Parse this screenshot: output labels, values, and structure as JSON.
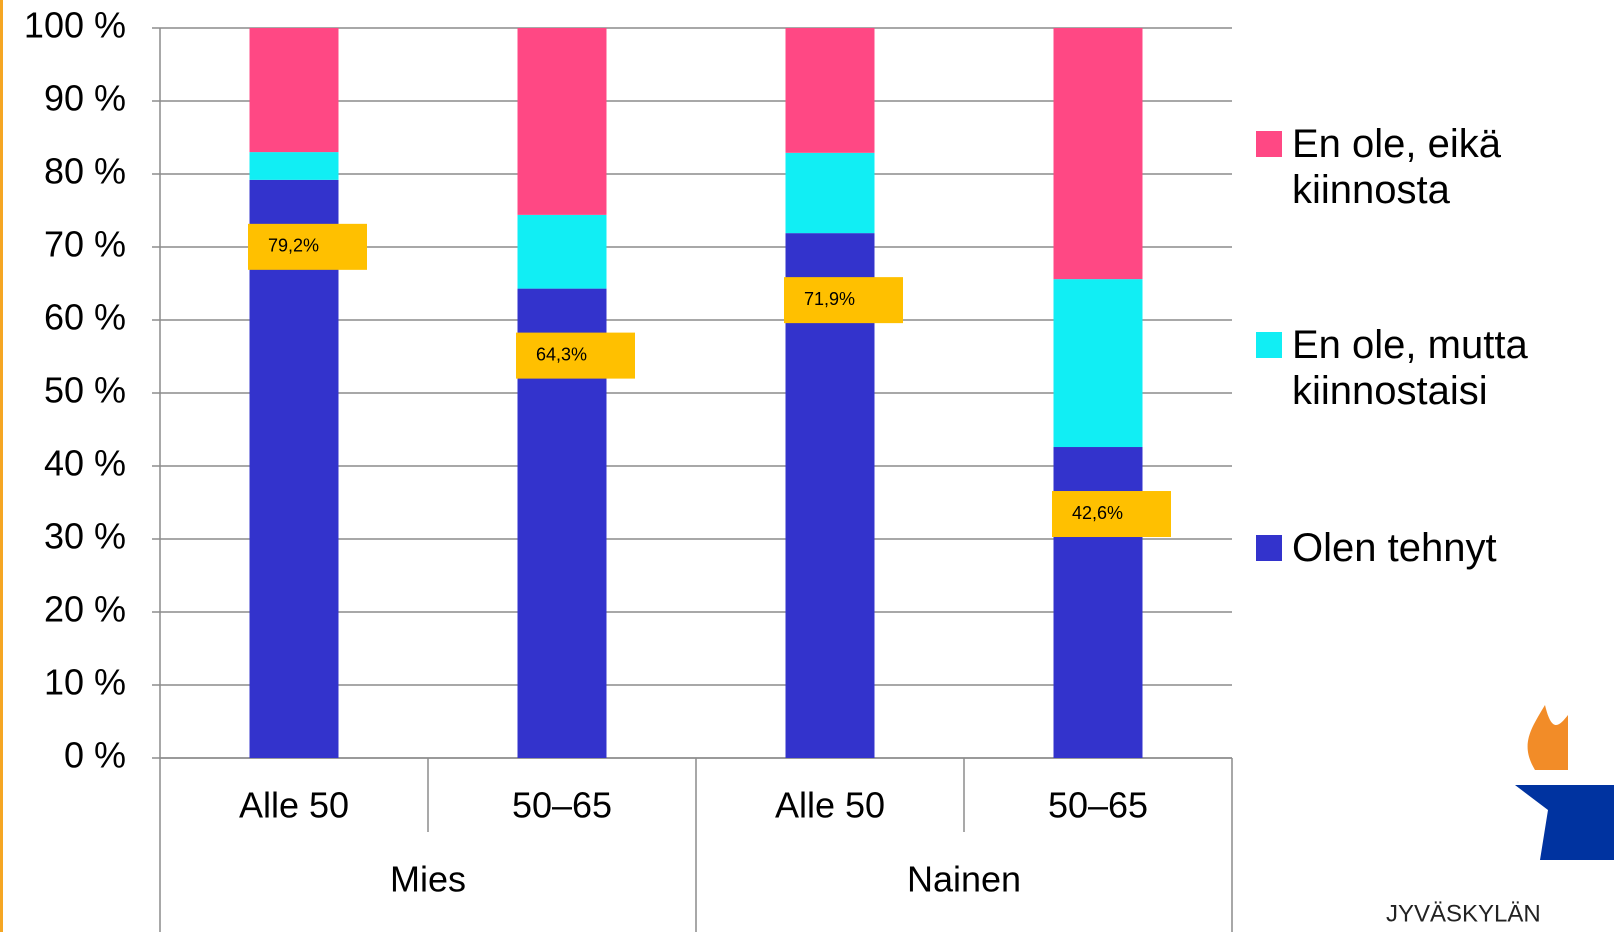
{
  "chart_data": {
    "type": "stacked_bar",
    "categories": [
      "Alle 50",
      "50–65",
      "Alle 50",
      "50–65"
    ],
    "groups": [
      "Mies",
      "Nainen"
    ],
    "series": [
      {
        "name": "Olen tehnyt",
        "color": "#3333CC",
        "values": [
          79.2,
          64.3,
          71.9,
          42.6
        ],
        "value_labels": [
          "79,2%",
          "64,3%",
          "71,9%",
          "42,6%"
        ]
      },
      {
        "name": "En ole, mutta kiinnostaisi",
        "color": "#11EEF4",
        "values": [
          3.8,
          10.1,
          11.0,
          23.0
        ]
      },
      {
        "name": "En ole, eikä kiinnosta",
        "color": "#FF4884",
        "values": [
          17.0,
          25.6,
          17.1,
          34.4
        ]
      }
    ],
    "ylim": [
      0,
      100
    ],
    "yticks": [
      {
        "value": 0,
        "label": "0 %"
      },
      {
        "value": 10,
        "label": "10 %"
      },
      {
        "value": 20,
        "label": "20 %"
      },
      {
        "value": 30,
        "label": "30 %"
      },
      {
        "value": 40,
        "label": "40 %"
      },
      {
        "value": 50,
        "label": "50 %"
      },
      {
        "value": 60,
        "label": "60 %"
      },
      {
        "value": 70,
        "label": "70 %"
      },
      {
        "value": 80,
        "label": "80 %"
      },
      {
        "value": 90,
        "label": "90 %"
      },
      {
        "value": 100,
        "label": "100 %"
      }
    ],
    "grid": true,
    "legend": "right",
    "value_label_color": "#FFC000"
  },
  "logo_text": "JYVÄSKYLÄN"
}
